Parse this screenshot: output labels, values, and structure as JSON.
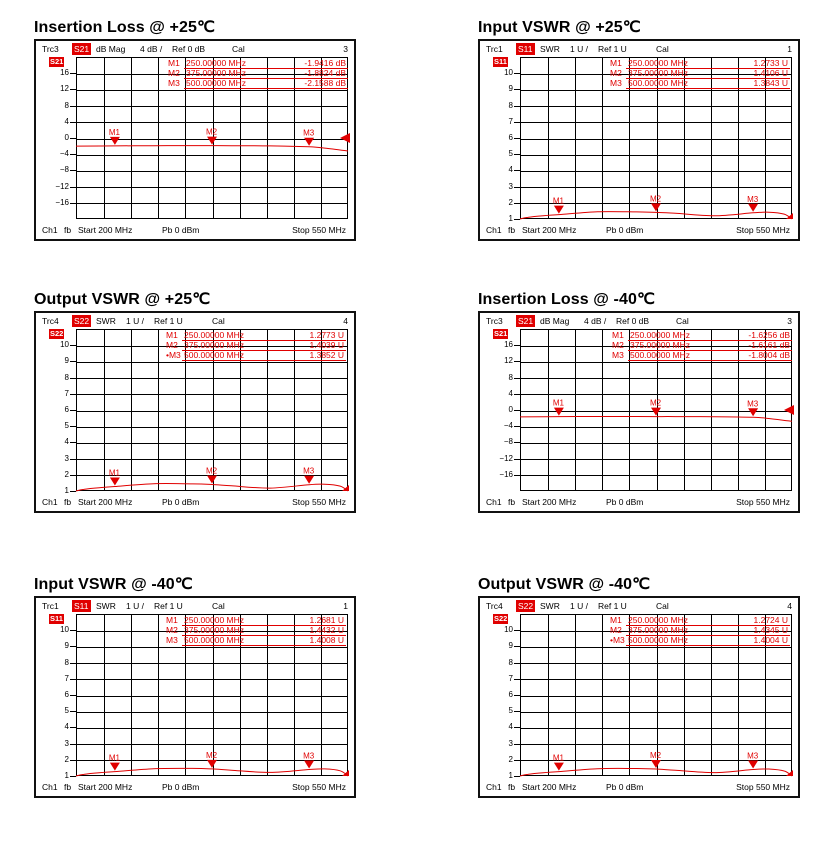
{
  "panels": [
    {
      "title": "Insertion Loss @ +25℃",
      "trace": "Trc3",
      "param": "S21",
      "format": "dB Mag",
      "scale": "4 dB /",
      "ref": "Ref 0 dB",
      "cal": "Cal",
      "trace_no": "3",
      "y_labels": [
        "16",
        "12",
        "8",
        "4",
        "0",
        "−4",
        "−8",
        "−12",
        "−16"
      ],
      "markers": [
        {
          "name": "M1",
          "freq": "250.00000 MHz",
          "value": "-1.9416 dB"
        },
        {
          "name": "M2",
          "freq": "375.00000 MHz",
          "value": "-1.8824 dB"
        },
        {
          "name": "M3",
          "freq": "500.00000 MHz",
          "value": "-2.1588 dB"
        }
      ],
      "footer": {
        "ch": "Ch1",
        "fb": "fb",
        "start": "Start  200 MHz",
        "pb": "Pb   0 dBm",
        "stop": "Stop  550 MHz"
      }
    },
    {
      "title": "Input VSWR @ +25℃",
      "trace": "Trc1",
      "param": "S11",
      "format": "SWR",
      "scale": "1 U /",
      "ref": "Ref 1 U",
      "cal": "Cal",
      "trace_no": "1",
      "y_labels": [
        "10",
        "9",
        "8",
        "7",
        "6",
        "5",
        "4",
        "3",
        "2",
        "1"
      ],
      "markers": [
        {
          "name": "M1",
          "freq": "250.00000 MHz",
          "value": "1.2733 U"
        },
        {
          "name": "M2",
          "freq": "375.00000 MHz",
          "value": "1.4106 U"
        },
        {
          "name": "M3",
          "freq": "500.00000 MHz",
          "value": "1.3843 U"
        }
      ],
      "footer": {
        "ch": "Ch1",
        "fb": "fb",
        "start": "Start  200 MHz",
        "pb": "Pb   0 dBm",
        "stop": "Stop  550 MHz"
      }
    },
    {
      "title": "Output VSWR @ +25℃",
      "trace": "Trc4",
      "param": "S22",
      "format": "SWR",
      "scale": "1 U /",
      "ref": "Ref 1 U",
      "cal": "Cal",
      "trace_no": "4",
      "y_labels": [
        "10",
        "9",
        "8",
        "7",
        "6",
        "5",
        "4",
        "3",
        "2",
        "1"
      ],
      "markers": [
        {
          "name": "M1",
          "freq": "250.00000 MHz",
          "value": "1.2773 U"
        },
        {
          "name": "M2",
          "freq": "375.00000 MHz",
          "value": "1.4039 U"
        },
        {
          "name": "•M3",
          "freq": "500.00000 MHz",
          "value": "1.3852 U"
        }
      ],
      "footer": {
        "ch": "Ch1",
        "fb": "fb",
        "start": "Start  200 MHz",
        "pb": "Pb   0 dBm",
        "stop": "Stop  550 MHz"
      }
    },
    {
      "title": "Insertion Loss @ -40℃",
      "trace": "Trc3",
      "param": "S21",
      "format": "dB Mag",
      "scale": "4 dB /",
      "ref": "Ref 0 dB",
      "cal": "Cal",
      "trace_no": "3",
      "y_labels": [
        "16",
        "12",
        "8",
        "4",
        "0",
        "−4",
        "−8",
        "−12",
        "−16"
      ],
      "markers": [
        {
          "name": "M1",
          "freq": "250.00000 MHz",
          "value": "-1.6256 dB"
        },
        {
          "name": "M2",
          "freq": "375.00000 MHz",
          "value": "-1.6161 dB"
        },
        {
          "name": "M3",
          "freq": "500.00000 MHz",
          "value": "-1.8004 dB"
        }
      ],
      "footer": {
        "ch": "Ch1",
        "fb": "fb",
        "start": "Start  200 MHz",
        "pb": "Pb   0 dBm",
        "stop": "Stop  550 MHz"
      }
    },
    {
      "title": "Input VSWR @ -40℃",
      "trace": "Trc1",
      "param": "S11",
      "format": "SWR",
      "scale": "1 U /",
      "ref": "Ref 1 U",
      "cal": "Cal",
      "trace_no": "1",
      "y_labels": [
        "10",
        "9",
        "8",
        "7",
        "6",
        "5",
        "4",
        "3",
        "2",
        "1"
      ],
      "markers": [
        {
          "name": "M1",
          "freq": "250.00000 MHz",
          "value": "1.2681 U"
        },
        {
          "name": "M2",
          "freq": "375.00000 MHz",
          "value": "1.4432 U"
        },
        {
          "name": "M3",
          "freq": "500.00000 MHz",
          "value": "1.4008 U"
        }
      ],
      "footer": {
        "ch": "Ch1",
        "fb": "fb",
        "start": "Start  200 MHz",
        "pb": "Pb   0 dBm",
        "stop": "Stop  550 MHz"
      }
    },
    {
      "title": "Output VSWR @ -40℃",
      "trace": "Trc4",
      "param": "S22",
      "format": "SWR",
      "scale": "1 U /",
      "ref": "Ref 1 U",
      "cal": "Cal",
      "trace_no": "4",
      "y_labels": [
        "10",
        "9",
        "8",
        "7",
        "6",
        "5",
        "4",
        "3",
        "2",
        "1"
      ],
      "markers": [
        {
          "name": "M1",
          "freq": "250.00000 MHz",
          "value": "1.2724 U"
        },
        {
          "name": "M2",
          "freq": "375.00000 MHz",
          "value": "1.4345 U"
        },
        {
          "name": "•M3",
          "freq": "500.00000 MHz",
          "value": "1.4004 U"
        }
      ],
      "footer": {
        "ch": "Ch1",
        "fb": "fb",
        "start": "Start  200 MHz",
        "pb": "Pb   0 dBm",
        "stop": "Stop  550 MHz"
      }
    }
  ],
  "colors": {
    "trace": "#e00000",
    "frame": "#111111",
    "grid": "#000000"
  },
  "chart_data": [
    {
      "type": "line",
      "title": "Insertion Loss @ +25℃",
      "xlim": [
        200,
        550
      ],
      "ylim": [
        -20,
        20
      ],
      "series": [
        {
          "name": "S21",
          "x": [
            200,
            250,
            300,
            350,
            375,
            400,
            450,
            500,
            520,
            550
          ],
          "y": [
            -2.0,
            -1.94,
            -1.9,
            -1.88,
            -1.88,
            -1.89,
            -1.95,
            -2.16,
            -2.5,
            -3.2
          ]
        }
      ]
    },
    {
      "type": "line",
      "title": "Input VSWR @ +25℃",
      "xlim": [
        200,
        550
      ],
      "ylim": [
        1,
        11
      ],
      "series": [
        {
          "name": "S11",
          "x": [
            200,
            210,
            230,
            250,
            300,
            350,
            375,
            400,
            450,
            500,
            520,
            540,
            550
          ],
          "y": [
            1.0,
            1.1,
            1.2,
            1.27,
            1.45,
            1.44,
            1.41,
            1.35,
            1.2,
            1.38,
            1.42,
            1.3,
            1.0
          ]
        }
      ]
    },
    {
      "type": "line",
      "title": "Output VSWR @ +25℃",
      "xlim": [
        200,
        550
      ],
      "ylim": [
        1,
        11
      ],
      "series": [
        {
          "name": "S22",
          "x": [
            200,
            210,
            230,
            250,
            300,
            350,
            375,
            400,
            450,
            500,
            520,
            540,
            550
          ],
          "y": [
            1.0,
            1.1,
            1.2,
            1.28,
            1.45,
            1.44,
            1.4,
            1.32,
            1.18,
            1.39,
            1.42,
            1.3,
            1.0
          ]
        }
      ]
    },
    {
      "type": "line",
      "title": "Insertion Loss @ -40℃",
      "xlim": [
        200,
        550
      ],
      "ylim": [
        -20,
        20
      ],
      "series": [
        {
          "name": "S21",
          "x": [
            200,
            250,
            300,
            350,
            375,
            400,
            450,
            500,
            520,
            550
          ],
          "y": [
            -1.7,
            -1.63,
            -1.6,
            -1.6,
            -1.62,
            -1.62,
            -1.66,
            -1.8,
            -2.1,
            -2.8
          ]
        }
      ]
    },
    {
      "type": "line",
      "title": "Input VSWR @ -40℃",
      "xlim": [
        200,
        550
      ],
      "ylim": [
        1,
        11
      ],
      "series": [
        {
          "name": "S11",
          "x": [
            200,
            210,
            230,
            250,
            300,
            350,
            375,
            400,
            450,
            500,
            520,
            540,
            550
          ],
          "y": [
            1.0,
            1.1,
            1.2,
            1.27,
            1.45,
            1.47,
            1.44,
            1.36,
            1.22,
            1.4,
            1.44,
            1.32,
            1.0
          ]
        }
      ]
    },
    {
      "type": "line",
      "title": "Output VSWR @ -40℃",
      "xlim": [
        200,
        550
      ],
      "ylim": [
        1,
        11
      ],
      "series": [
        {
          "name": "S22",
          "x": [
            200,
            210,
            230,
            250,
            300,
            350,
            375,
            400,
            450,
            500,
            520,
            540,
            550
          ],
          "y": [
            1.0,
            1.1,
            1.2,
            1.27,
            1.45,
            1.46,
            1.43,
            1.35,
            1.21,
            1.4,
            1.43,
            1.31,
            1.0
          ]
        }
      ]
    }
  ]
}
